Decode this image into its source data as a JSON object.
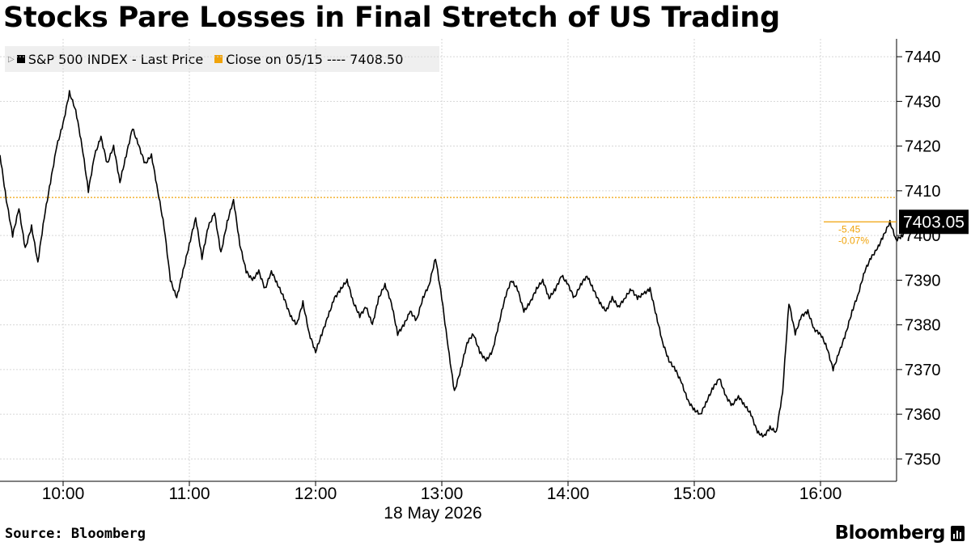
{
  "title": "Stocks Pare Losses in Final Stretch of US Trading",
  "legend": {
    "series_label": "S&P 500 INDEX - Last Price",
    "close_label": "Close on 05/15 ---- 7408.50"
  },
  "source": "Source: Bloomberg",
  "logo": "Bloomberg",
  "colors": {
    "price": "#000000",
    "close": "#f0a30a",
    "grid": "#d0d0d0",
    "legend_bg": "#efefef"
  },
  "chart_data": {
    "type": "line",
    "series": [
      {
        "name": "S&P 500 INDEX - Last Price"
      }
    ],
    "x_date": "18 May 2026",
    "x_ticks": [
      "10:00",
      "11:00",
      "12:00",
      "13:00",
      "14:00",
      "15:00",
      "16:00"
    ],
    "y_ticks": [
      "7440",
      "7430",
      "7420",
      "7410",
      "7400",
      "7390",
      "7380",
      "7370",
      "7360",
      "7350"
    ],
    "ylim": [
      7345,
      7444
    ],
    "grid": true,
    "reference_line": {
      "label": "Close on 05/15",
      "value": 7408.5
    },
    "last_value": "7403.05",
    "change": "-5.45",
    "change_pct": "-0.07%",
    "points": [
      [
        "09:30",
        7418
      ],
      [
        "09:33",
        7408
      ],
      [
        "09:36",
        7400
      ],
      [
        "09:39",
        7406
      ],
      [
        "09:42",
        7397
      ],
      [
        "09:45",
        7402
      ],
      [
        "09:48",
        7394
      ],
      [
        "09:51",
        7404
      ],
      [
        "09:54",
        7412
      ],
      [
        "09:57",
        7420
      ],
      [
        "10:00",
        7425
      ],
      [
        "10:03",
        7432
      ],
      [
        "10:06",
        7428
      ],
      [
        "10:09",
        7420
      ],
      [
        "10:12",
        7410
      ],
      [
        "10:15",
        7418
      ],
      [
        "10:18",
        7422
      ],
      [
        "10:21",
        7416
      ],
      [
        "10:24",
        7420
      ],
      [
        "10:27",
        7412
      ],
      [
        "10:30",
        7418
      ],
      [
        "10:33",
        7424
      ],
      [
        "10:36",
        7420
      ],
      [
        "10:39",
        7416
      ],
      [
        "10:42",
        7418
      ],
      [
        "10:45",
        7410
      ],
      [
        "10:48",
        7402
      ],
      [
        "10:51",
        7390
      ],
      [
        "10:54",
        7386
      ],
      [
        "10:57",
        7392
      ],
      [
        "11:00",
        7398
      ],
      [
        "11:03",
        7404
      ],
      [
        "11:06",
        7395
      ],
      [
        "11:09",
        7402
      ],
      [
        "11:12",
        7405
      ],
      [
        "11:15",
        7396
      ],
      [
        "11:18",
        7403
      ],
      [
        "11:21",
        7408
      ],
      [
        "11:24",
        7398
      ],
      [
        "11:27",
        7392
      ],
      [
        "11:30",
        7390
      ],
      [
        "11:33",
        7392
      ],
      [
        "11:36",
        7388
      ],
      [
        "11:39",
        7392
      ],
      [
        "11:42",
        7389
      ],
      [
        "11:45",
        7386
      ],
      [
        "11:48",
        7382
      ],
      [
        "11:51",
        7380
      ],
      [
        "11:54",
        7385
      ],
      [
        "11:57",
        7378
      ],
      [
        "12:00",
        7374
      ],
      [
        "12:03",
        7378
      ],
      [
        "12:06",
        7382
      ],
      [
        "12:09",
        7386
      ],
      [
        "12:12",
        7388
      ],
      [
        "12:15",
        7390
      ],
      [
        "12:18",
        7385
      ],
      [
        "12:21",
        7382
      ],
      [
        "12:24",
        7384
      ],
      [
        "12:27",
        7380
      ],
      [
        "12:30",
        7386
      ],
      [
        "12:33",
        7389
      ],
      [
        "12:36",
        7385
      ],
      [
        "12:39",
        7378
      ],
      [
        "12:42",
        7380
      ],
      [
        "12:45",
        7383
      ],
      [
        "12:48",
        7381
      ],
      [
        "12:51",
        7386
      ],
      [
        "12:54",
        7389
      ],
      [
        "12:57",
        7395
      ],
      [
        "13:00",
        7386
      ],
      [
        "13:03",
        7375
      ],
      [
        "13:06",
        7365
      ],
      [
        "13:09",
        7370
      ],
      [
        "13:12",
        7376
      ],
      [
        "13:15",
        7378
      ],
      [
        "13:18",
        7374
      ],
      [
        "13:21",
        7372
      ],
      [
        "13:24",
        7374
      ],
      [
        "13:27",
        7380
      ],
      [
        "13:30",
        7386
      ],
      [
        "13:33",
        7390
      ],
      [
        "13:36",
        7388
      ],
      [
        "13:39",
        7383
      ],
      [
        "13:42",
        7385
      ],
      [
        "13:45",
        7388
      ],
      [
        "13:48",
        7390
      ],
      [
        "13:51",
        7386
      ],
      [
        "13:54",
        7388
      ],
      [
        "13:57",
        7391
      ],
      [
        "14:00",
        7389
      ],
      [
        "14:03",
        7386
      ],
      [
        "14:06",
        7389
      ],
      [
        "14:09",
        7391
      ],
      [
        "14:12",
        7388
      ],
      [
        "14:15",
        7385
      ],
      [
        "14:18",
        7383
      ],
      [
        "14:21",
        7386
      ],
      [
        "14:24",
        7384
      ],
      [
        "14:27",
        7386
      ],
      [
        "14:30",
        7388
      ],
      [
        "14:33",
        7386
      ],
      [
        "14:36",
        7387
      ],
      [
        "14:39",
        7388
      ],
      [
        "14:42",
        7382
      ],
      [
        "14:45",
        7376
      ],
      [
        "14:48",
        7372
      ],
      [
        "14:51",
        7370
      ],
      [
        "14:54",
        7367
      ],
      [
        "14:57",
        7363
      ],
      [
        "15:00",
        7361
      ],
      [
        "15:03",
        7360
      ],
      [
        "15:06",
        7363
      ],
      [
        "15:09",
        7366
      ],
      [
        "15:12",
        7368
      ],
      [
        "15:15",
        7364
      ],
      [
        "15:18",
        7362
      ],
      [
        "15:21",
        7364
      ],
      [
        "15:24",
        7362
      ],
      [
        "15:27",
        7360
      ],
      [
        "15:30",
        7356
      ],
      [
        "15:33",
        7355
      ],
      [
        "15:36",
        7357
      ],
      [
        "15:39",
        7356
      ],
      [
        "15:42",
        7365
      ],
      [
        "15:45",
        7385
      ],
      [
        "15:48",
        7378
      ],
      [
        "15:51",
        7382
      ],
      [
        "15:54",
        7383
      ],
      [
        "15:57",
        7379
      ],
      [
        "16:00",
        7378
      ],
      [
        "16:03",
        7375
      ],
      [
        "16:06",
        7370
      ],
      [
        "16:09",
        7374
      ],
      [
        "16:12",
        7378
      ],
      [
        "16:15",
        7383
      ],
      [
        "16:18",
        7387
      ],
      [
        "16:21",
        7392
      ],
      [
        "16:24",
        7395
      ],
      [
        "16:27",
        7397
      ],
      [
        "16:30",
        7400
      ],
      [
        "16:33",
        7403
      ],
      [
        "16:36",
        7399
      ],
      [
        "16:39",
        7400
      ],
      [
        "16:42",
        7404
      ],
      [
        "16:45",
        7403.05
      ],
      [
        "16:48",
        7403.05
      ],
      [
        "16:51",
        7403.05
      ]
    ]
  }
}
